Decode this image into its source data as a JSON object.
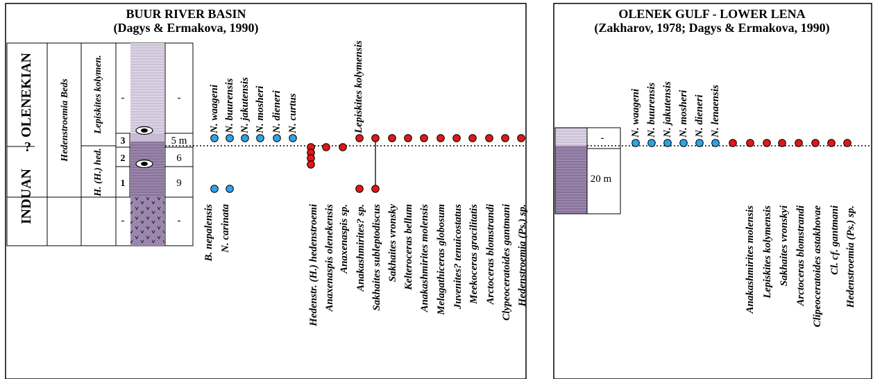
{
  "colors": {
    "blue_dot": "#2ea3e6",
    "red_dot": "#e11818",
    "purple": "#9b86ad",
    "light_purple": "#d7cee0"
  },
  "left_panel": {
    "title": "BUUR RIVER BASIN",
    "subtitle": "(Dagys & Ermakova, 1990)",
    "stages": {
      "upper": "OLENEKIAN",
      "lower": "INDUAN",
      "query": "?"
    },
    "beds": "Hedenstroemia Beds",
    "zone_upper": "Lepiskites kolymen.",
    "zone_lower": "H. (H.) hed.",
    "layer_numbers": [
      "3",
      "2",
      "1"
    ],
    "thicknesses": [
      "-",
      "5 m",
      "6",
      "9",
      "-"
    ],
    "dash_lower_left": "-",
    "dash_upper_left": "-",
    "top_species": [
      "N. waageni",
      "N. buurensis",
      "N. jakutensis",
      "N. mosheri",
      "N. dieneri",
      "N. curtus"
    ],
    "range_label": "Lepiskites kolymensis",
    "bottom_species": [
      "B. nepalensis",
      "N. carinata",
      "Hedenstr. (H.) hedenstroemi",
      "Anaxenaspis olenekensis",
      "Anaxenaspis sp.",
      "Anakashmirites? sp.",
      "Sakhaites subleptodiscus",
      "Sakhaites vronsky",
      "Kelteroceras bellum",
      "Anakashmirites molensis",
      "Melagathiceras globosum",
      "Juvenites? tenuicostatus",
      "Meekoceras gracilitatis",
      "Arctoceras blomstrandi",
      "Clypeoceratoides gantmani",
      "Hedenstroemia (Ps.) sp."
    ]
  },
  "right_panel": {
    "title": "OLENEK GULF - LOWER LENA",
    "subtitle": "(Zakharov, 1978; Dagys & Ermakova, 1990)",
    "thickness_top": "-",
    "thickness_bottom": "20 m",
    "top_species": [
      "N. waageni",
      "N. buurensis",
      "N. jakutensis",
      "N. mosheri",
      "N. dieneri",
      "N. lenaensis"
    ],
    "bottom_species": [
      "Anakashmirites molensis",
      "Lepiskites kolymensis",
      "Sakhaites vronskyi",
      "Arctoceras blomstrandi",
      "Clipeoceratoides astakhovae",
      "Cl. cf. gantmani",
      "Hedenstroemia (Ps.) sp."
    ]
  }
}
